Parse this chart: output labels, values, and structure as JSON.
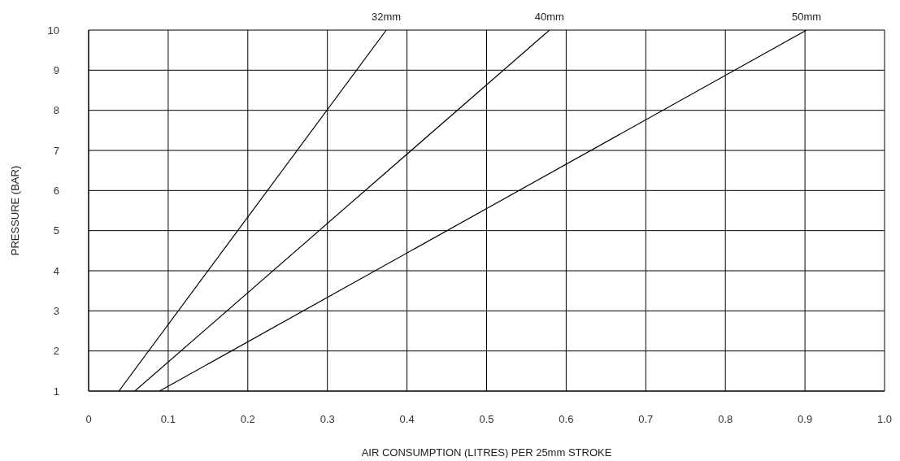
{
  "chart_data": {
    "type": "line",
    "xlabel": "AIR CONSUMPTION (LITRES) PER 25mm STROKE",
    "ylabel": "PRESSURE (BAR)",
    "series": [
      {
        "name": "32mm",
        "color": "#000000",
        "x": [
          0.038,
          0.374
        ],
        "values": [
          1,
          10
        ]
      },
      {
        "name": "40mm",
        "color": "#000000",
        "x": [
          0.058,
          0.579
        ],
        "values": [
          1,
          10
        ]
      },
      {
        "name": "50mm",
        "color": "#000000",
        "x": [
          0.089,
          0.902
        ],
        "values": [
          1,
          10
        ]
      }
    ],
    "xlim": [
      0,
      1
    ],
    "xticks": [
      0,
      0.1,
      0.2,
      0.3,
      0.4,
      0.5,
      0.6,
      0.7,
      0.8,
      0.9,
      {
        "value": 1,
        "label": "1.0"
      }
    ],
    "ylim": [
      1,
      10
    ],
    "yticks": [
      1,
      2,
      3,
      4,
      5,
      6,
      7,
      8,
      9,
      10
    ],
    "grid": true,
    "marker": "none",
    "line_style": "solid"
  }
}
